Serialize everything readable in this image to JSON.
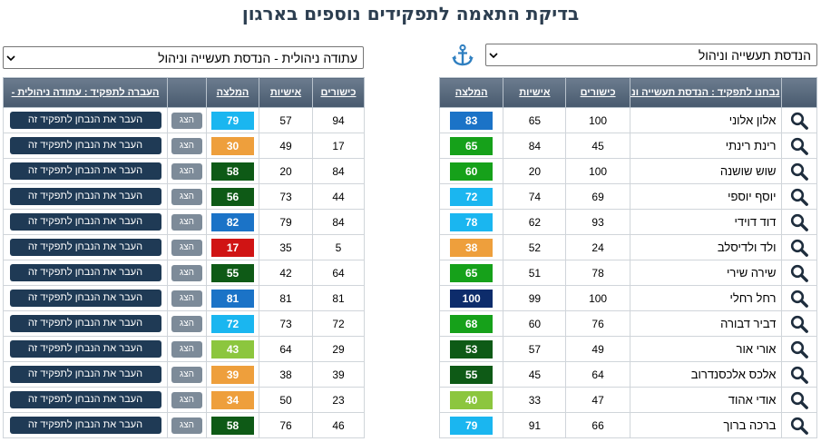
{
  "page": {
    "title": "בדיקת התאמה לתפקידים נוספים בארגון"
  },
  "right_select": {
    "value": "הנדסת תעשייה וניהול"
  },
  "left_select": {
    "value": "עתודה ניהולית - הנדסת תעשייה וניהול"
  },
  "right_table": {
    "headers": {
      "name": "נבחנו לתפקיד : הנדסת תעשייה וניהול",
      "skills": "כישורים",
      "personality": "אישיות",
      "recommendation": "המלצה"
    },
    "rows": [
      {
        "name": "אלון אלוני",
        "skills": "100",
        "personality": "65",
        "rec": "83",
        "color": "#1b73c7"
      },
      {
        "name": "רינת רינתי",
        "skills": "45",
        "personality": "84",
        "rec": "65",
        "color": "#16a11a"
      },
      {
        "name": "שוש שושנה",
        "skills": "100",
        "personality": "20",
        "rec": "60",
        "color": "#16a11a"
      },
      {
        "name": "יוסף יוספי",
        "skills": "69",
        "personality": "74",
        "rec": "72",
        "color": "#1ab6f0"
      },
      {
        "name": "דוד דוידי",
        "skills": "93",
        "personality": "62",
        "rec": "78",
        "color": "#1ab6f0"
      },
      {
        "name": "ולד ולדיסלב",
        "skills": "24",
        "personality": "52",
        "rec": "38",
        "color": "#ee9f3c"
      },
      {
        "name": "שירה שירי",
        "skills": "78",
        "personality": "51",
        "rec": "65",
        "color": "#16a11a"
      },
      {
        "name": "רחל רחלי",
        "skills": "100",
        "personality": "99",
        "rec": "100",
        "color": "#0d2c6b"
      },
      {
        "name": "דביר דבורה",
        "skills": "76",
        "personality": "60",
        "rec": "68",
        "color": "#16a11a"
      },
      {
        "name": "אורי אור",
        "skills": "49",
        "personality": "57",
        "rec": "53",
        "color": "#0e5a16"
      },
      {
        "name": "אלכס אלכסנדרוב",
        "skills": "64",
        "personality": "45",
        "rec": "55",
        "color": "#0e5a16"
      },
      {
        "name": "אודי אהוד",
        "skills": "47",
        "personality": "33",
        "rec": "40",
        "color": "#8cc63e"
      },
      {
        "name": "ברכה ברוך",
        "skills": "66",
        "personality": "91",
        "rec": "79",
        "color": "#1ab6f0"
      }
    ]
  },
  "left_table": {
    "headers": {
      "skills": "כישורים",
      "personality": "אישיות",
      "recommendation": "המלצה",
      "transfer": "העברה לתפקיד : עתודה ניהולית -"
    },
    "show_label": "הצג",
    "move_label": "העבר את הנבחן לתפקיד זה",
    "rows": [
      {
        "skills": "94",
        "personality": "57",
        "rec": "79",
        "color": "#1ab6f0"
      },
      {
        "skills": "17",
        "personality": "49",
        "rec": "30",
        "color": "#ee9f3c"
      },
      {
        "skills": "84",
        "personality": "20",
        "rec": "58",
        "color": "#0e5a16"
      },
      {
        "skills": "44",
        "personality": "73",
        "rec": "56",
        "color": "#0e5a16"
      },
      {
        "skills": "84",
        "personality": "79",
        "rec": "82",
        "color": "#1b73c7"
      },
      {
        "skills": "5",
        "personality": "35",
        "rec": "17",
        "color": "#d01414"
      },
      {
        "skills": "64",
        "personality": "42",
        "rec": "55",
        "color": "#0e5a16"
      },
      {
        "skills": "81",
        "personality": "81",
        "rec": "81",
        "color": "#1b73c7"
      },
      {
        "skills": "72",
        "personality": "73",
        "rec": "72",
        "color": "#1ab6f0"
      },
      {
        "skills": "29",
        "personality": "64",
        "rec": "43",
        "color": "#8cc63e"
      },
      {
        "skills": "39",
        "personality": "38",
        "rec": "39",
        "color": "#ee9f3c"
      },
      {
        "skills": "23",
        "personality": "50",
        "rec": "34",
        "color": "#ee9f3c"
      },
      {
        "skills": "46",
        "personality": "76",
        "rec": "58",
        "color": "#0e5a16"
      }
    ]
  },
  "icons": {
    "anchor": "anchor-icon",
    "search": "search-icon",
    "caret": "chevron-down-icon"
  }
}
